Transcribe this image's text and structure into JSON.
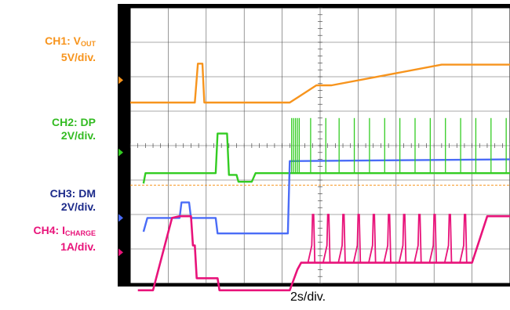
{
  "chart_data": {
    "type": "line",
    "instrument": "oscilloscope",
    "timebase": "2s/div.",
    "x_divisions": 10,
    "y_divisions": 8,
    "series": [
      {
        "id": "ch1",
        "name_main": "CH1: V",
        "name_sub": "OUT",
        "scale": "5V/div.",
        "color": "#f7941d",
        "points": [
          [
            0,
            -0.65
          ],
          [
            1.7,
            -0.65
          ],
          [
            1.78,
            0.48
          ],
          [
            1.9,
            0.48
          ],
          [
            1.95,
            -0.65
          ],
          [
            4.2,
            -0.65
          ],
          [
            4.9,
            -0.15
          ],
          [
            5.3,
            -0.15
          ],
          [
            8.2,
            0.45
          ],
          [
            10,
            0.45
          ]
        ]
      },
      {
        "id": "ch2",
        "name_main": "CH2: DP",
        "name_sub": "",
        "scale": "2V/div.",
        "color": "#33cc22",
        "points": [
          [
            0.35,
            -0.9
          ],
          [
            0.4,
            -0.6
          ],
          [
            2.25,
            -0.6
          ],
          [
            2.3,
            0.55
          ],
          [
            2.55,
            0.55
          ],
          [
            2.6,
            -0.65
          ],
          [
            2.8,
            -0.65
          ],
          [
            2.85,
            -0.85
          ],
          [
            3.2,
            -0.85
          ],
          [
            3.3,
            -0.6
          ],
          [
            10,
            -0.6
          ]
        ]
      },
      {
        "id": "ch3",
        "name_main": "CH3: DM",
        "name_sub": "",
        "scale": "2V/div.",
        "color": "#4a6cf7",
        "points": [
          [
            0.35,
            -0.4
          ],
          [
            0.45,
            0.0
          ],
          [
            1.3,
            0.0
          ],
          [
            1.35,
            0.45
          ],
          [
            1.55,
            0.45
          ],
          [
            1.6,
            0.0
          ],
          [
            2.25,
            0.0
          ],
          [
            2.3,
            -0.45
          ],
          [
            4.15,
            -0.45
          ],
          [
            4.2,
            1.65
          ],
          [
            10,
            1.7
          ]
        ]
      },
      {
        "id": "ch4",
        "name_main": "CH4: I",
        "name_sub": "CHARGE",
        "scale": "1A/div.",
        "color": "#e8137a",
        "points": [
          [
            0.2,
            -1.1
          ],
          [
            0.6,
            -1.1
          ],
          [
            1.1,
            1.0
          ],
          [
            1.3,
            1.05
          ],
          [
            1.6,
            1.05
          ],
          [
            1.65,
            0.2
          ],
          [
            1.7,
            0.2
          ],
          [
            1.75,
            -0.75
          ],
          [
            2.3,
            -0.75
          ],
          [
            2.35,
            -1.1
          ],
          [
            4.2,
            -1.1
          ],
          [
            4.4,
            -0.5
          ],
          [
            4.5,
            -0.3
          ],
          [
            9.0,
            -0.3
          ],
          [
            9.4,
            1.05
          ],
          [
            10,
            1.05
          ]
        ]
      }
    ],
    "ch4_pulses_t": [
      4.8,
      5.2,
      5.6,
      6.0,
      6.4,
      6.8,
      7.2,
      7.6,
      8.0,
      8.4,
      8.8
    ],
    "ch2_spikes_t": [
      4.25,
      4.3,
      4.35,
      4.4,
      4.45,
      4.75,
      5.15,
      5.5,
      5.9,
      6.3,
      6.7,
      7.1,
      7.5,
      7.9,
      8.3,
      8.7,
      9.1,
      9.5,
      9.9
    ],
    "ref_line": {
      "color": "#f7941d"
    }
  }
}
